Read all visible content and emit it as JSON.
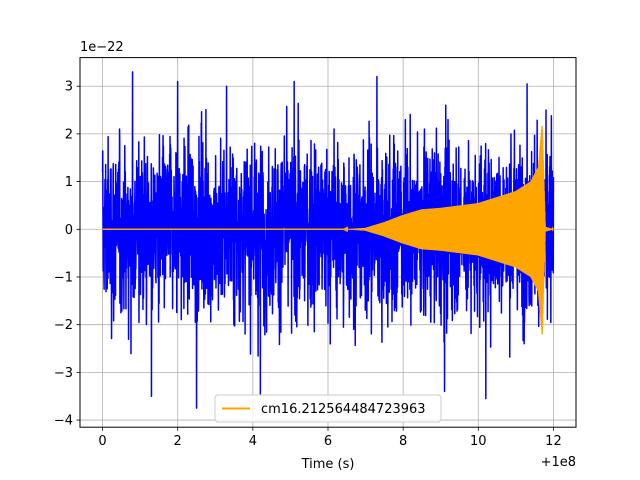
{
  "chart_data": {
    "type": "line",
    "title": "",
    "xlabel": "Time (s)",
    "ylabel": "",
    "x_offset_label": "+1e8",
    "y_scale_label": "1e−22",
    "xlim": [
      -0.6,
      12.6
    ],
    "ylim": [
      -4.15,
      3.6
    ],
    "x_ticks": [
      0,
      2,
      4,
      6,
      8,
      10,
      12
    ],
    "x_tick_labels": [
      "0",
      "2",
      "4",
      "6",
      "8",
      "10",
      "12"
    ],
    "y_ticks": [
      -4,
      -3,
      -2,
      -1,
      0,
      1,
      2,
      3
    ],
    "y_tick_labels": [
      "−4",
      "−3",
      "−2",
      "−1",
      "0",
      "1",
      "2",
      "3"
    ],
    "grid": true,
    "legend_location": "lower center",
    "series": [
      {
        "color": "#0000ff",
        "kind": "noise",
        "x_start": 0,
        "x_end": 12,
        "sigma": 0.9,
        "typical_peak": 2.6,
        "extremes": [
          {
            "x": 0.8,
            "y": 3.3
          },
          {
            "x": 1.3,
            "y": -3.5
          },
          {
            "x": 2.0,
            "y": 3.1
          },
          {
            "x": 2.5,
            "y": -3.75
          },
          {
            "x": 3.3,
            "y": 3.0
          },
          {
            "x": 4.2,
            "y": -3.45
          },
          {
            "x": 5.1,
            "y": 3.1
          },
          {
            "x": 7.3,
            "y": 3.2
          },
          {
            "x": 9.1,
            "y": -3.4
          },
          {
            "x": 10.2,
            "y": -3.55
          },
          {
            "x": 11.3,
            "y": 3.05
          }
        ]
      },
      {
        "name": "cm16.212564484723963",
        "color": "#ffa500",
        "kind": "chirp",
        "envelope": [
          {
            "x": 0.0,
            "y": 0.0
          },
          {
            "x": 6.4,
            "y": 0.0
          },
          {
            "x": 7.0,
            "y": 0.03
          },
          {
            "x": 7.5,
            "y": 0.15
          },
          {
            "x": 8.0,
            "y": 0.3
          },
          {
            "x": 8.5,
            "y": 0.42
          },
          {
            "x": 9.0,
            "y": 0.45
          },
          {
            "x": 10.0,
            "y": 0.55
          },
          {
            "x": 11.0,
            "y": 0.8
          },
          {
            "x": 11.4,
            "y": 1.0
          },
          {
            "x": 11.6,
            "y": 1.3
          },
          {
            "x": 11.7,
            "y": 2.2
          },
          {
            "x": 11.78,
            "y": 0.05
          },
          {
            "x": 12.0,
            "y": 0.0
          }
        ]
      }
    ]
  }
}
